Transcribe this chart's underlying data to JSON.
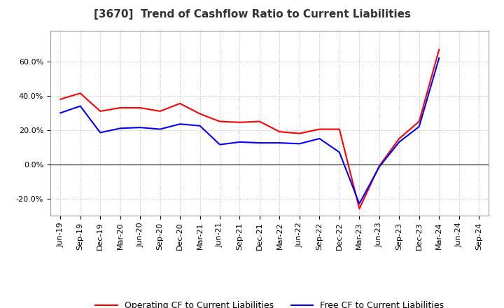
{
  "title": "[3670]  Trend of Cashflow Ratio to Current Liabilities",
  "x_labels": [
    "Jun-19",
    "Sep-19",
    "Dec-19",
    "Mar-20",
    "Jun-20",
    "Sep-20",
    "Dec-20",
    "Mar-21",
    "Jun-21",
    "Sep-21",
    "Dec-21",
    "Mar-22",
    "Jun-22",
    "Sep-22",
    "Dec-22",
    "Mar-23",
    "Jun-23",
    "Sep-23",
    "Dec-23",
    "Mar-24",
    "Jun-24",
    "Sep-24"
  ],
  "operating_cf": [
    38.0,
    41.5,
    31.0,
    33.0,
    33.0,
    31.0,
    35.5,
    29.5,
    25.0,
    24.5,
    25.0,
    19.0,
    18.0,
    20.5,
    20.5,
    -26.0,
    -1.0,
    15.0,
    25.0,
    67.0,
    null,
    null
  ],
  "free_cf": [
    30.0,
    34.0,
    18.5,
    21.0,
    21.5,
    20.5,
    23.5,
    22.5,
    11.5,
    13.0,
    12.5,
    12.5,
    12.0,
    15.0,
    7.0,
    -23.0,
    -1.5,
    13.0,
    22.0,
    62.0,
    null,
    null
  ],
  "ylim": [
    -30.0,
    78.0
  ],
  "yticks": [
    -20.0,
    0.0,
    20.0,
    40.0,
    60.0
  ],
  "yticklabels": [
    "-20.0%",
    "0.0%",
    "20.0%",
    "40.0%",
    "60.0%"
  ],
  "operating_color": "#ff0000",
  "free_color": "#0000ff",
  "bg_color": "#ffffff",
  "plot_bg_color": "#ffffff",
  "grid_color": "#bbbbbb",
  "legend_operating": "Operating CF to Current Liabilities",
  "legend_free": "Free CF to Current Liabilities",
  "title_fontsize": 11,
  "axis_fontsize": 8,
  "legend_fontsize": 9,
  "title_color": "#333333"
}
